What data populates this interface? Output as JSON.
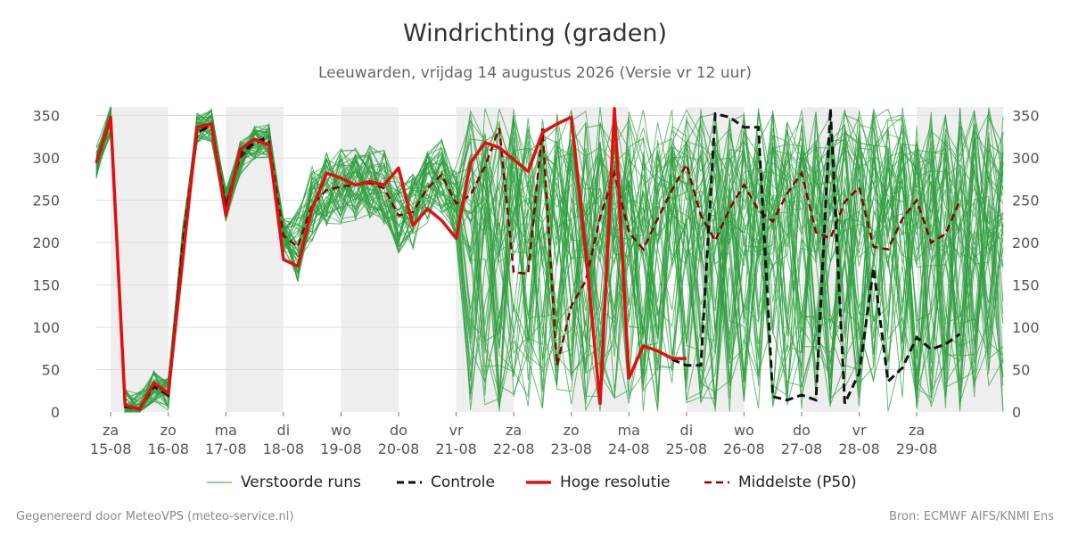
{
  "title": "Windrichting (graden)",
  "subtitle": "Leeuwarden, vrijdag 14 augustus 2026 (Versie vr 12 uur)",
  "footer_left": "Gegenereerd door MeteoVPS (meteo-service.nl)",
  "footer_right": "Bron: ECMWF AIFS/KNMI Ens",
  "legend": [
    {
      "label": "Verstoorde runs",
      "color": "#2e9e3e",
      "style": "thin-solid"
    },
    {
      "label": "Controle",
      "color": "#111111",
      "style": "dashed"
    },
    {
      "label": "Hoge resolutie",
      "color": "#e01010",
      "style": "thick-solid"
    },
    {
      "label": "Middelste (P50)",
      "color": "#8b0000",
      "style": "dashed"
    }
  ],
  "colors": {
    "ensemble": "#2e9e3e",
    "control": "#111111",
    "hires": "#e01010",
    "median": "#8b0000",
    "weekend_shade": "#eeeeee",
    "grid": "#dddddd"
  },
  "chart_data": {
    "type": "line",
    "title": "Windrichting (graden)",
    "ylim": [
      0,
      360
    ],
    "xlim": [
      "2026-08-14 18:00",
      "2026-08-30 12:00"
    ],
    "yticks": [
      0,
      50,
      100,
      150,
      200,
      250,
      300,
      350
    ],
    "axes": "y-axis ticks on left and right",
    "grid": true,
    "legend_position": "bottom",
    "x_ticks": [
      {
        "day": "za",
        "date": "15-08"
      },
      {
        "day": "zo",
        "date": "16-08"
      },
      {
        "day": "ma",
        "date": "17-08"
      },
      {
        "day": "di",
        "date": "18-08"
      },
      {
        "day": "wo",
        "date": "19-08"
      },
      {
        "day": "do",
        "date": "20-08"
      },
      {
        "day": "vr",
        "date": "21-08"
      },
      {
        "day": "za",
        "date": "22-08"
      },
      {
        "day": "zo",
        "date": "23-08"
      },
      {
        "day": "ma",
        "date": "24-08"
      },
      {
        "day": "di",
        "date": "25-08"
      },
      {
        "day": "wo",
        "date": "26-08"
      },
      {
        "day": "do",
        "date": "27-08"
      },
      {
        "day": "vr",
        "date": "28-08"
      },
      {
        "day": "za",
        "date": "29-08"
      }
    ],
    "shaded_night_periods": [
      [
        "2026-08-15 00:00",
        "2026-08-15 06:00"
      ],
      [
        "2026-08-15 18:00",
        "2026-08-16 06:00"
      ],
      [
        "2026-08-16 18:00",
        "2026-08-17 06:00"
      ],
      [
        "2026-08-17 18:00",
        "2026-08-18 06:00"
      ]
    ],
    "shaded_periods": [
      [
        "2026-08-15 00:00",
        "2026-08-16 00:00"
      ],
      [
        "2026-08-17 00:00",
        "2026-08-18 00:00"
      ],
      [
        "2026-08-19 00:00",
        "2026-08-20 00:00"
      ],
      [
        "2026-08-21 00:00",
        "2026-08-22 00:00"
      ],
      [
        "2026-08-23 00:00",
        "2026-08-24 00:00"
      ],
      [
        "2026-08-25 00:00",
        "2026-08-26 00:00"
      ],
      [
        "2026-08-27 00:00",
        "2026-08-28 00:00"
      ],
      [
        "2026-08-29 00:00",
        "2026-08-30 12:00"
      ]
    ],
    "hires": {
      "name": "Hoge resolutie",
      "points": [
        [
          "2026-08-14 18:00",
          294
        ],
        [
          "2026-08-15 00:00",
          348
        ],
        [
          "2026-08-15 06:00",
          8
        ],
        [
          "2026-08-15 12:00",
          3
        ],
        [
          "2026-08-15 18:00",
          34
        ],
        [
          "2026-08-16 00:00",
          22
        ],
        [
          "2026-08-16 06:00",
          180
        ],
        [
          "2026-08-16 12:00",
          336
        ],
        [
          "2026-08-16 18:00",
          340
        ],
        [
          "2026-08-17 00:00",
          232
        ],
        [
          "2026-08-17 06:00",
          310
        ],
        [
          "2026-08-17 12:00",
          322
        ],
        [
          "2026-08-17 18:00",
          315
        ],
        [
          "2026-08-18 00:00",
          180
        ],
        [
          "2026-08-18 06:00",
          172
        ],
        [
          "2026-08-18 12:00",
          240
        ],
        [
          "2026-08-18 18:00",
          282
        ],
        [
          "2026-08-19 00:00",
          276
        ],
        [
          "2026-08-19 06:00",
          268
        ],
        [
          "2026-08-19 12:00",
          272
        ],
        [
          "2026-08-19 18:00",
          268
        ],
        [
          "2026-08-20 00:00",
          288
        ],
        [
          "2026-08-20 06:00",
          220
        ],
        [
          "2026-08-20 12:00",
          240
        ],
        [
          "2026-08-20 18:00",
          226
        ],
        [
          "2026-08-21 00:00",
          205
        ],
        [
          "2026-08-21 06:00",
          294
        ],
        [
          "2026-08-21 12:00",
          318
        ],
        [
          "2026-08-21 18:00",
          312
        ],
        [
          "2026-08-22 00:00",
          298
        ],
        [
          "2026-08-22 06:00",
          284
        ],
        [
          "2026-08-22 12:00",
          330
        ],
        [
          "2026-08-22 18:00",
          340
        ],
        [
          "2026-08-23 00:00",
          348
        ],
        [
          "2026-08-23 06:00",
          190
        ],
        [
          "2026-08-23 12:00",
          10
        ],
        [
          "2026-08-23 18:00",
          358
        ],
        [
          "2026-08-24 00:00",
          40
        ],
        [
          "2026-08-24 06:00",
          78
        ],
        [
          "2026-08-24 12:00",
          72
        ],
        [
          "2026-08-24 18:00",
          63
        ],
        [
          "2026-08-25 00:00",
          63
        ]
      ]
    },
    "control": {
      "name": "Controle",
      "points": [
        [
          "2026-08-14 18:00",
          295
        ],
        [
          "2026-08-15 00:00",
          348
        ],
        [
          "2026-08-15 06:00",
          6
        ],
        [
          "2026-08-15 12:00",
          4
        ],
        [
          "2026-08-15 18:00",
          30
        ],
        [
          "2026-08-16 00:00",
          20
        ],
        [
          "2026-08-16 06:00",
          190
        ],
        [
          "2026-08-16 12:00",
          330
        ],
        [
          "2026-08-16 18:00",
          338
        ],
        [
          "2026-08-17 00:00",
          240
        ],
        [
          "2026-08-17 06:00",
          305
        ],
        [
          "2026-08-17 12:00",
          318
        ],
        [
          "2026-08-17 18:00",
          325
        ],
        [
          "2026-08-24 18:00",
          62
        ],
        [
          "2026-08-25 00:00",
          55
        ],
        [
          "2026-08-25 06:00",
          55
        ],
        [
          "2026-08-25 12:00",
          352
        ],
        [
          "2026-08-25 18:00",
          348
        ],
        [
          "2026-08-26 00:00",
          336
        ],
        [
          "2026-08-26 06:00",
          336
        ],
        [
          "2026-08-26 12:00",
          18
        ],
        [
          "2026-08-26 18:00",
          14
        ],
        [
          "2026-08-27 00:00",
          20
        ],
        [
          "2026-08-27 06:00",
          14
        ],
        [
          "2026-08-27 12:00",
          358
        ],
        [
          "2026-08-27 18:00",
          10
        ],
        [
          "2026-08-28 00:00",
          46
        ],
        [
          "2026-08-28 06:00",
          170
        ],
        [
          "2026-08-28 12:00",
          36
        ],
        [
          "2026-08-28 18:00",
          52
        ],
        [
          "2026-08-29 00:00",
          88
        ],
        [
          "2026-08-29 06:00",
          74
        ],
        [
          "2026-08-29 12:00",
          80
        ],
        [
          "2026-08-29 18:00",
          92
        ]
      ]
    },
    "median": {
      "name": "Middelste (P50)",
      "points": [
        [
          "2026-08-14 18:00",
          294
        ],
        [
          "2026-08-15 00:00",
          346
        ],
        [
          "2026-08-15 06:00",
          8
        ],
        [
          "2026-08-15 12:00",
          4
        ],
        [
          "2026-08-15 18:00",
          30
        ],
        [
          "2026-08-16 00:00",
          22
        ],
        [
          "2026-08-16 06:00",
          200
        ],
        [
          "2026-08-16 12:00",
          334
        ],
        [
          "2026-08-16 18:00",
          338
        ],
        [
          "2026-08-17 00:00",
          245
        ],
        [
          "2026-08-17 06:00",
          300
        ],
        [
          "2026-08-17 12:00",
          318
        ],
        [
          "2026-08-17 18:00",
          320
        ],
        [
          "2026-08-18 00:00",
          208
        ],
        [
          "2026-08-18 06:00",
          195
        ],
        [
          "2026-08-18 12:00",
          245
        ],
        [
          "2026-08-18 18:00",
          262
        ],
        [
          "2026-08-19 00:00",
          266
        ],
        [
          "2026-08-19 06:00",
          268
        ],
        [
          "2026-08-19 12:00",
          270
        ],
        [
          "2026-08-19 18:00",
          264
        ],
        [
          "2026-08-20 00:00",
          232
        ],
        [
          "2026-08-20 06:00",
          236
        ],
        [
          "2026-08-20 12:00",
          264
        ],
        [
          "2026-08-20 18:00",
          280
        ],
        [
          "2026-08-21 00:00",
          246
        ],
        [
          "2026-08-21 06:00",
          256
        ],
        [
          "2026-08-21 12:00",
          290
        ],
        [
          "2026-08-21 18:00",
          335
        ],
        [
          "2026-08-22 00:00",
          165
        ],
        [
          "2026-08-22 06:00",
          163
        ],
        [
          "2026-08-22 12:00",
          335
        ],
        [
          "2026-08-22 18:00",
          55
        ],
        [
          "2026-08-23 00:00",
          125
        ],
        [
          "2026-08-23 06:00",
          155
        ],
        [
          "2026-08-23 12:00",
          230
        ],
        [
          "2026-08-23 18:00",
          282
        ],
        [
          "2026-08-24 00:00",
          212
        ],
        [
          "2026-08-24 06:00",
          192
        ],
        [
          "2026-08-24 12:00",
          228
        ],
        [
          "2026-08-24 18:00",
          262
        ],
        [
          "2026-08-25 00:00",
          292
        ],
        [
          "2026-08-25 06:00",
          232
        ],
        [
          "2026-08-25 12:00",
          202
        ],
        [
          "2026-08-25 18:00",
          240
        ],
        [
          "2026-08-26 00:00",
          268
        ],
        [
          "2026-08-26 06:00",
          238
        ],
        [
          "2026-08-26 12:00",
          225
        ],
        [
          "2026-08-26 18:00",
          258
        ],
        [
          "2026-08-27 00:00",
          282
        ],
        [
          "2026-08-27 06:00",
          212
        ],
        [
          "2026-08-27 12:00",
          205
        ],
        [
          "2026-08-27 18:00",
          248
        ],
        [
          "2026-08-28 00:00",
          265
        ],
        [
          "2026-08-28 06:00",
          195
        ],
        [
          "2026-08-28 12:00",
          192
        ],
        [
          "2026-08-28 18:00",
          228
        ],
        [
          "2026-08-29 00:00",
          250
        ],
        [
          "2026-08-29 06:00",
          200
        ],
        [
          "2026-08-29 12:00",
          210
        ],
        [
          "2026-08-29 18:00",
          250
        ]
      ]
    },
    "ensemble_note_values": {
      "members": 50,
      "step_hours": 6,
      "start": "2026-08-14 18:00",
      "spread_by_period": [
        {
          "until": "2026-08-18 06:00",
          "behaviour": "tightly clustered around median"
        },
        {
          "until": "2026-08-21 00:00",
          "range": [
            160,
            310
          ]
        },
        {
          "until": "2026-08-30 12:00",
          "range": [
            0,
            360
          ]
        }
      ]
    }
  }
}
